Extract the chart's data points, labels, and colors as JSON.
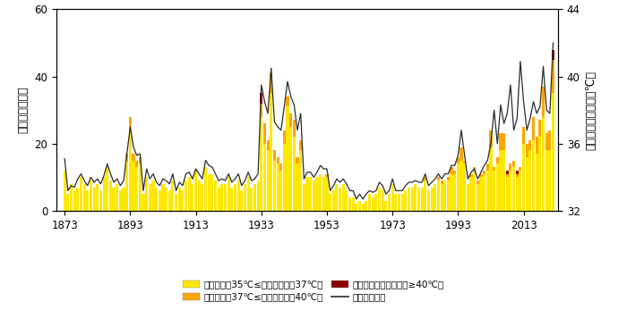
{
  "years": [
    1873,
    1874,
    1875,
    1876,
    1877,
    1878,
    1879,
    1880,
    1881,
    1882,
    1883,
    1884,
    1885,
    1886,
    1887,
    1888,
    1889,
    1890,
    1891,
    1892,
    1893,
    1894,
    1895,
    1896,
    1897,
    1898,
    1899,
    1900,
    1901,
    1902,
    1903,
    1904,
    1905,
    1906,
    1907,
    1908,
    1909,
    1910,
    1911,
    1912,
    1913,
    1914,
    1915,
    1916,
    1917,
    1918,
    1919,
    1920,
    1921,
    1922,
    1923,
    1924,
    1925,
    1926,
    1927,
    1928,
    1929,
    1930,
    1931,
    1932,
    1933,
    1934,
    1935,
    1936,
    1937,
    1938,
    1939,
    1940,
    1941,
    1942,
    1943,
    1944,
    1945,
    1946,
    1947,
    1948,
    1949,
    1950,
    1951,
    1952,
    1953,
    1954,
    1955,
    1956,
    1957,
    1958,
    1959,
    1960,
    1961,
    1962,
    1963,
    1964,
    1965,
    1966,
    1967,
    1968,
    1969,
    1970,
    1971,
    1972,
    1973,
    1974,
    1975,
    1976,
    1977,
    1978,
    1979,
    1980,
    1981,
    1982,
    1983,
    1984,
    1985,
    1986,
    1987,
    1988,
    1989,
    1990,
    1991,
    1992,
    1993,
    1994,
    1995,
    1996,
    1997,
    1998,
    1999,
    2000,
    2001,
    2002,
    2003,
    2004,
    2005,
    2006,
    2007,
    2008,
    2009,
    2010,
    2011,
    2012,
    2013,
    2014,
    2015,
    2016,
    2017,
    2018,
    2019,
    2020,
    2021,
    2022
  ],
  "yellow": [
    12,
    5,
    8,
    6,
    7,
    10,
    8,
    6,
    9,
    7,
    8,
    6,
    10,
    13,
    9,
    7,
    8,
    6,
    7,
    15,
    25,
    15,
    13,
    14,
    5,
    10,
    8,
    9,
    7,
    6,
    8,
    7,
    6,
    9,
    5,
    7,
    6,
    9,
    10,
    8,
    12,
    9,
    8,
    13,
    11,
    11,
    9,
    7,
    8,
    8,
    10,
    7,
    8,
    9,
    6,
    8,
    10,
    7,
    8,
    9,
    28,
    20,
    18,
    35,
    15,
    14,
    12,
    20,
    31,
    25,
    22,
    14,
    18,
    8,
    10,
    10,
    9,
    10,
    11,
    10,
    10,
    5,
    6,
    8,
    7,
    8,
    6,
    4,
    4,
    2,
    3,
    2,
    3,
    5,
    4,
    5,
    7,
    6,
    3,
    5,
    8,
    5,
    5,
    5,
    6,
    7,
    7,
    8,
    7,
    7,
    9,
    6,
    7,
    8,
    9,
    8,
    9,
    9,
    11,
    11,
    14,
    15,
    14,
    8,
    10,
    12,
    8,
    10,
    11,
    12,
    19,
    12,
    14,
    18,
    18,
    10,
    12,
    13,
    10,
    12,
    20,
    16,
    18,
    21,
    17,
    22,
    28,
    18,
    18,
    35
  ],
  "orange": [
    0,
    0,
    0,
    0,
    0,
    0,
    0,
    0,
    0,
    0,
    0,
    0,
    0,
    0,
    0,
    0,
    0,
    0,
    0,
    2,
    3,
    2,
    2,
    2,
    0,
    0,
    0,
    0,
    0,
    0,
    0,
    0,
    0,
    0,
    0,
    0,
    0,
    0,
    0,
    0,
    0,
    0,
    0,
    0,
    0,
    0,
    0,
    0,
    0,
    0,
    0,
    0,
    0,
    0,
    0,
    0,
    0,
    0,
    0,
    0,
    4,
    6,
    3,
    6,
    3,
    2,
    2,
    4,
    3,
    4,
    5,
    2,
    3,
    0,
    0,
    0,
    0,
    0,
    0,
    0,
    1,
    0,
    0,
    0,
    0,
    0,
    0,
    0,
    0,
    0,
    0,
    0,
    0,
    0,
    0,
    0,
    0,
    0,
    0,
    0,
    0,
    0,
    0,
    0,
    0,
    0,
    0,
    0,
    0,
    0,
    1,
    0,
    0,
    0,
    1,
    1,
    0,
    1,
    2,
    1,
    2,
    4,
    1,
    0,
    1,
    1,
    1,
    1,
    1,
    2,
    5,
    1,
    2,
    5,
    5,
    1,
    2,
    2,
    1,
    1,
    5,
    4,
    3,
    7,
    5,
    5,
    9,
    5,
    6,
    10
  ],
  "red": [
    0,
    0,
    0,
    0,
    0,
    0,
    0,
    0,
    0,
    0,
    0,
    0,
    0,
    0,
    0,
    0,
    0,
    0,
    0,
    0,
    0,
    0,
    0,
    0,
    0,
    0,
    0,
    0,
    0,
    0,
    0,
    0,
    0,
    0,
    0,
    0,
    0,
    0,
    0,
    0,
    0,
    0,
    0,
    0,
    0,
    0,
    0,
    0,
    0,
    0,
    0,
    0,
    0,
    0,
    0,
    0,
    0,
    0,
    0,
    0,
    3,
    0,
    0,
    0,
    0,
    0,
    0,
    0,
    0,
    0,
    0,
    0,
    0,
    0,
    0,
    0,
    0,
    0,
    0,
    0,
    0,
    0,
    0,
    0,
    0,
    0,
    0,
    0,
    0,
    0,
    0,
    0,
    0,
    0,
    0,
    0,
    0,
    0,
    0,
    0,
    0,
    0,
    0,
    0,
    0,
    0,
    0,
    0,
    0,
    0,
    0,
    0,
    0,
    0,
    0,
    0,
    0,
    0,
    0,
    0,
    0,
    0,
    0,
    0,
    0,
    0,
    0,
    0,
    0,
    0,
    0,
    0,
    0,
    0,
    0,
    1,
    0,
    0,
    1,
    0,
    0,
    0,
    0,
    0,
    0,
    0,
    0,
    0,
    0,
    3
  ],
  "extreme_max": [
    35.1,
    33.2,
    33.5,
    33.4,
    33.9,
    34.2,
    33.8,
    33.5,
    34.0,
    33.7,
    33.9,
    33.6,
    34.1,
    34.8,
    34.2,
    33.7,
    33.9,
    33.5,
    33.8,
    35.4,
    37.0,
    35.8,
    35.3,
    35.4,
    33.2,
    34.5,
    33.9,
    34.2,
    33.7,
    33.5,
    33.9,
    33.8,
    33.6,
    34.2,
    33.2,
    33.7,
    33.5,
    34.2,
    34.3,
    33.9,
    34.5,
    34.2,
    33.9,
    35.0,
    34.7,
    34.6,
    34.2,
    33.8,
    33.9,
    33.8,
    34.2,
    33.7,
    33.9,
    34.2,
    33.5,
    33.8,
    34.3,
    33.8,
    33.9,
    34.2,
    39.5,
    38.5,
    37.8,
    40.5,
    37.3,
    37.0,
    36.8,
    38.2,
    39.7,
    38.8,
    38.3,
    36.8,
    37.8,
    33.9,
    34.3,
    34.3,
    34.0,
    34.3,
    34.7,
    34.5,
    34.5,
    33.2,
    33.5,
    33.9,
    33.7,
    33.9,
    33.6,
    33.2,
    33.2,
    32.7,
    33.0,
    32.7,
    33.0,
    33.2,
    33.1,
    33.2,
    33.7,
    33.5,
    33.0,
    33.2,
    33.9,
    33.2,
    33.2,
    33.2,
    33.5,
    33.7,
    33.7,
    33.8,
    33.7,
    33.7,
    34.2,
    33.5,
    33.7,
    33.9,
    34.2,
    33.9,
    34.2,
    34.2,
    34.7,
    34.7,
    35.3,
    36.8,
    35.3,
    33.9,
    34.3,
    34.5,
    33.9,
    34.3,
    34.7,
    35.0,
    36.0,
    38.0,
    36.0,
    38.3,
    37.2,
    37.8,
    39.5,
    36.8,
    37.5,
    40.9,
    38.5,
    36.8,
    37.5,
    38.5,
    37.8,
    38.2,
    40.6,
    38.0,
    37.8,
    42.0
  ],
  "ylabel_left": "高温日数（天）",
  "ylabel_right": "夏季极端最高气温（℃）",
  "ylim_left": [
    0,
    60
  ],
  "ylim_right": [
    32,
    44
  ],
  "xticks": [
    1873,
    1893,
    1913,
    1933,
    1953,
    1973,
    1993,
    2013
  ],
  "color_yellow": "#FFE800",
  "color_orange": "#FFA500",
  "color_red": "#8B0000",
  "color_line": "#2b2b2b",
  "legend_labels": [
    "高温日数（35℃≤日最高气温＜37℃）",
    "高温日数（37℃≤日最高气温＜40℃）",
    "高温日数（日最高气温≥40℃）",
    "极端最高气温"
  ],
  "background_color": "#ffffff"
}
